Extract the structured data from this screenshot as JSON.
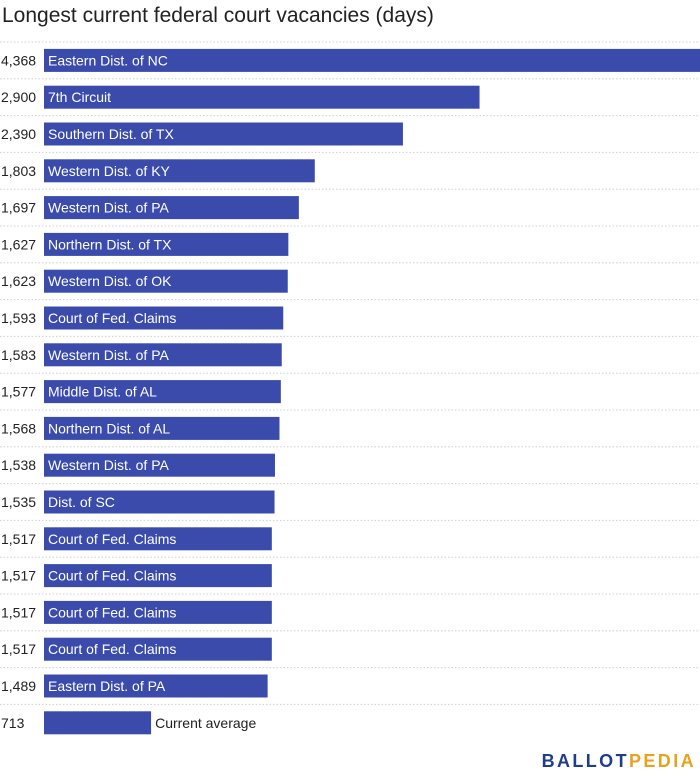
{
  "title": "Longest current federal court vacancies (days)",
  "logo": {
    "part1": "BALLOT",
    "part2": "PEDIA"
  },
  "colors": {
    "bar": "#3a4bab",
    "grid": "#cfcfcf",
    "label_text": "#ffffff",
    "value_text": "#222222",
    "brand_blue": "#1f3d8f",
    "brand_gold": "#e8a21f"
  },
  "chart_data": {
    "type": "bar",
    "orientation": "horizontal",
    "title": "Longest current federal court vacancies (days)",
    "xlabel": "",
    "ylabel": "",
    "xlim": [
      0,
      4368
    ],
    "grid": true,
    "categories": [
      "Eastern Dist. of NC",
      "7th Circuit",
      "Southern Dist. of TX",
      "Western Dist. of KY",
      "Western Dist. of PA",
      "Northern Dist. of TX",
      "Western Dist. of OK",
      "Court of Fed. Claims",
      "Western Dist. of PA",
      "Middle Dist. of AL",
      "Northern Dist. of AL",
      "Western Dist. of PA",
      "Dist. of SC",
      "Court of Fed. Claims",
      "Court of Fed. Claims",
      "Court of Fed. Claims",
      "Court of Fed. Claims",
      "Eastern Dist. of PA",
      "Current average"
    ],
    "values": [
      4368,
      2900,
      2390,
      1803,
      1697,
      1627,
      1623,
      1593,
      1583,
      1577,
      1568,
      1538,
      1535,
      1517,
      1517,
      1517,
      1517,
      1489,
      713
    ],
    "value_labels": [
      "4,368",
      "2,900",
      "2,390",
      "1,803",
      "1,697",
      "1,627",
      "1,623",
      "1,593",
      "1,583",
      "1,577",
      "1,568",
      "1,538",
      "1,535",
      "1,517",
      "1,517",
      "1,517",
      "1,517",
      "1,489",
      "713"
    ]
  }
}
